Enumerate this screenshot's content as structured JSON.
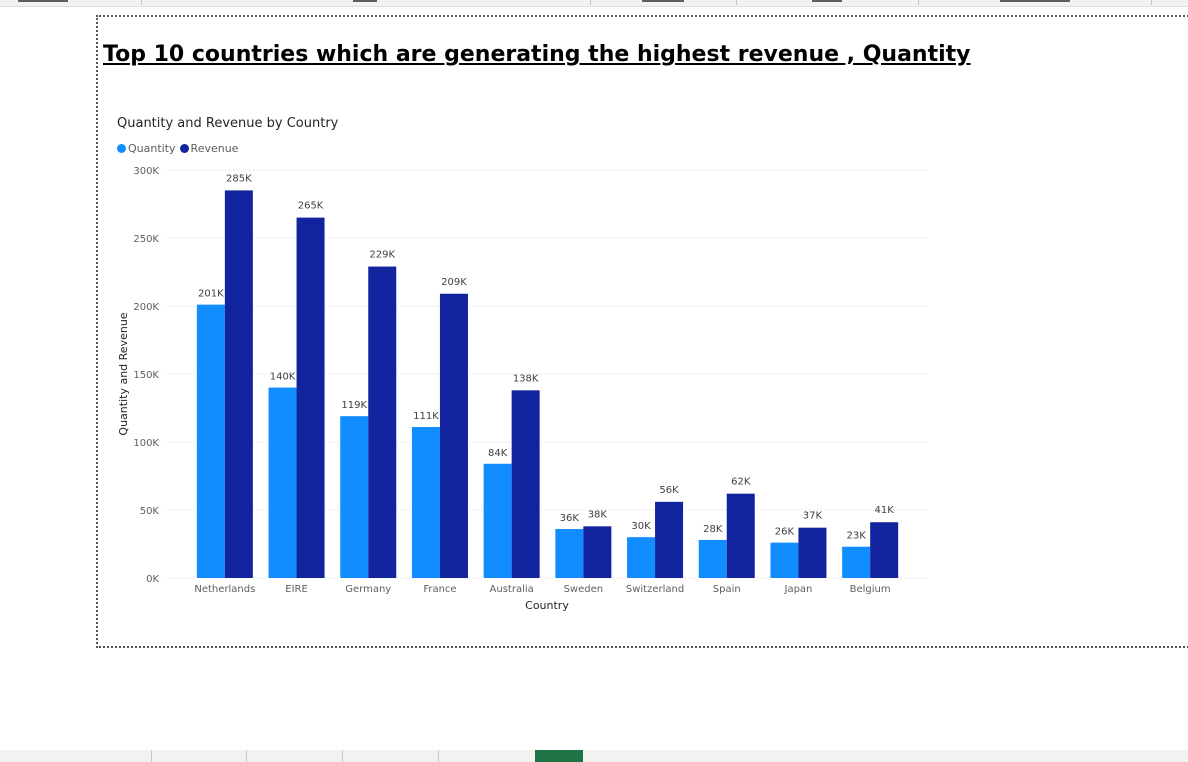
{
  "page": {
    "title": "Top 10 countries which are generating the highest revenue , Quantity"
  },
  "colors": {
    "quantity": "#118dff",
    "revenue": "#12239e",
    "gridline": "#d0d0d0",
    "axis_text": "#605e5c",
    "label_text": "#404040"
  },
  "chart_data": {
    "type": "bar",
    "title": "Quantity and Revenue by Country",
    "xlabel": "Country",
    "ylabel": "Quantity and Revenue",
    "categories": [
      "Netherlands",
      "EIRE",
      "Germany",
      "France",
      "Australia",
      "Sweden",
      "Switzerland",
      "Spain",
      "Japan",
      "Belgium"
    ],
    "series": [
      {
        "name": "Quantity",
        "color": "#118dff",
        "values": [
          201000,
          140000,
          119000,
          111000,
          84000,
          36000,
          30000,
          28000,
          26000,
          23000
        ],
        "labels": [
          "201K",
          "140K",
          "119K",
          "111K",
          "84K",
          "36K",
          "30K",
          "28K",
          "26K",
          "23K"
        ]
      },
      {
        "name": "Revenue",
        "color": "#12239e",
        "values": [
          285000,
          265000,
          229000,
          209000,
          138000,
          38000,
          56000,
          62000,
          37000,
          41000
        ],
        "labels": [
          "285K",
          "265K",
          "229K",
          "209K",
          "138K",
          "38K",
          "56K",
          "62K",
          "37K",
          "41K"
        ]
      }
    ],
    "ylim": [
      0,
      300000
    ],
    "yticks": [
      0,
      50000,
      100000,
      150000,
      200000,
      250000,
      300000
    ],
    "ytick_labels": [
      "0K",
      "50K",
      "100K",
      "150K",
      "200K",
      "250K",
      "300K"
    ],
    "grid": true,
    "legend_position": "top-left"
  }
}
